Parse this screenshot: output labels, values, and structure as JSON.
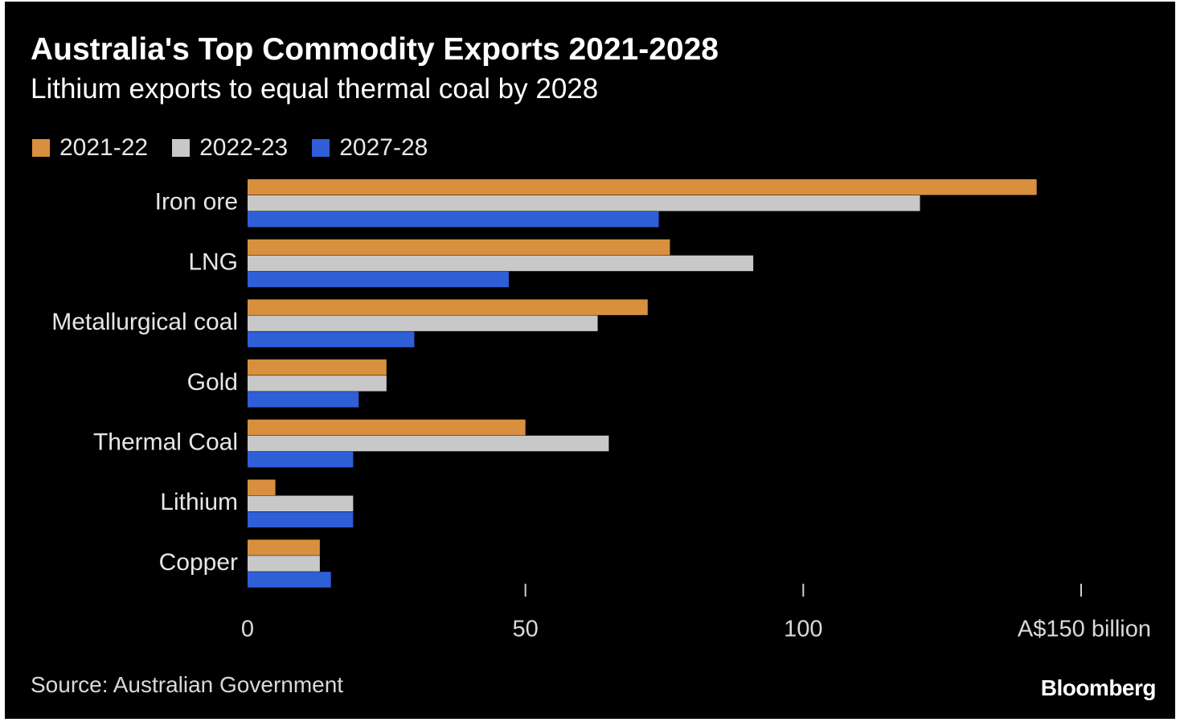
{
  "title": "Australia's Top Commodity Exports 2021-2028",
  "subtitle": "Lithium exports to equal thermal coal by 2028",
  "source": "Source: Australian Government",
  "brand": "Bloomberg",
  "colors": {
    "background": "#000000",
    "series_2021_22": "#d8903f",
    "series_2022_23": "#c8c8c8",
    "series_2027_28": "#2f5fd6"
  },
  "chart_data": {
    "type": "bar",
    "orientation": "horizontal",
    "categories": [
      "Iron ore",
      "LNG",
      "Metallurgical coal",
      "Gold",
      "Thermal Coal",
      "Lithium",
      "Copper"
    ],
    "series": [
      {
        "name": "2021-22",
        "color": "#d8903f",
        "values": [
          142,
          76,
          72,
          25,
          50,
          5,
          13
        ]
      },
      {
        "name": "2022-23",
        "color": "#c8c8c8",
        "values": [
          121,
          91,
          63,
          25,
          65,
          19,
          13
        ]
      },
      {
        "name": "2027-28",
        "color": "#2f5fd6",
        "values": [
          74,
          47,
          30,
          20,
          19,
          19,
          15
        ]
      }
    ],
    "xlim": [
      0,
      150
    ],
    "xticks": [
      0,
      50,
      100,
      150
    ],
    "xtick_labels": [
      "0",
      "50",
      "100",
      "A$150 billion"
    ],
    "grid": false,
    "legend_position": "top-left"
  }
}
